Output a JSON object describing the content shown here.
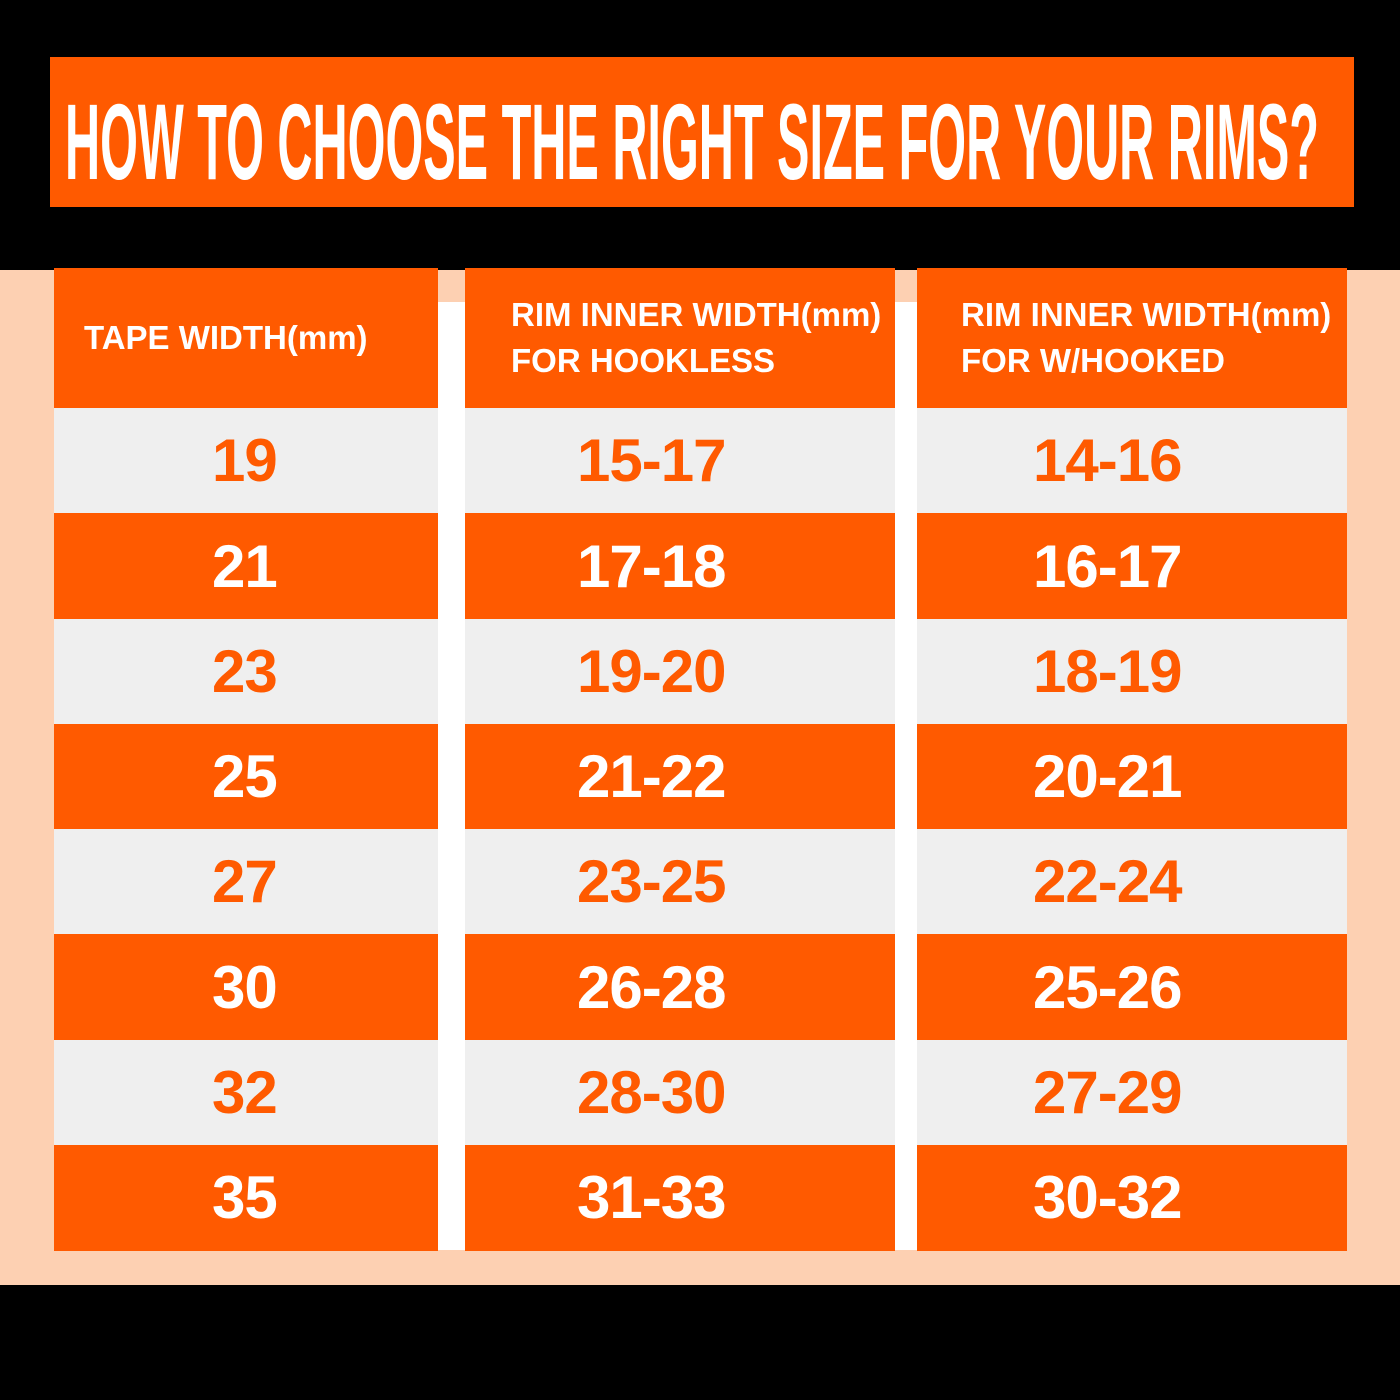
{
  "title": "HOW TO CHOOSE THE RIGHT SIZE FOR YOUR RIMS?",
  "table": {
    "header": [
      [
        "TAPE WIDTH(mm)"
      ],
      [
        "RIM INNER WIDTH(mm)",
        "FOR HOOKLESS"
      ],
      [
        "RIM INNER WIDTH(mm)",
        "FOR W/HOOKED"
      ]
    ],
    "rows": [
      [
        "19",
        "15-17",
        "14-16"
      ],
      [
        "21",
        "17-18",
        "16-17"
      ],
      [
        "23",
        "19-20",
        "18-19"
      ],
      [
        "25",
        "21-22",
        "20-21"
      ],
      [
        "27",
        "23-25",
        "22-24"
      ],
      [
        "30",
        "26-28",
        "25-26"
      ],
      [
        "32",
        "28-30",
        "27-29"
      ],
      [
        "35",
        "31-33",
        "30-32"
      ]
    ]
  }
}
